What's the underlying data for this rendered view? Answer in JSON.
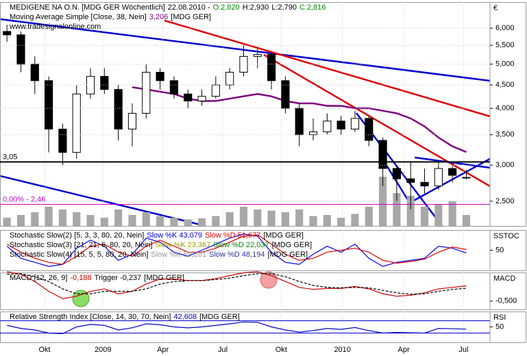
{
  "chart_data": [
    {
      "type": "candlestick",
      "title": "MEDIGENE NA O.N. [MDG GER  Wöchentlich]",
      "date": "22.08.2010 -",
      "ohlc": [
        {
          "text": "O:2,820",
          "color": "#008800"
        },
        {
          "text": "H:2,930",
          "color": "#000000"
        },
        {
          "text": "L:2,790",
          "color": "#000000"
        },
        {
          "text": "C:2,816",
          "color": "#008800"
        }
      ],
      "watermark": "www.tradesignalonline.com",
      "currency": "€",
      "log": true,
      "grid": true,
      "ylim": [
        2206,
        6846
      ],
      "yticks": [
        {
          "value": 2500,
          "label": "2,500"
        },
        {
          "value": 3000,
          "label": "3,000"
        },
        {
          "value": 3500,
          "label": "3,500"
        },
        {
          "value": 4000,
          "label": "4,000"
        },
        {
          "value": 4500,
          "label": "4,500"
        },
        {
          "value": 5000,
          "label": "5,000"
        },
        {
          "value": 5500,
          "label": "5,500"
        },
        {
          "value": 6000,
          "label": "6,000"
        }
      ],
      "xlim": [
        -0.5,
        34.7
      ],
      "xticks": [
        {
          "value": 2.7,
          "label": "Okt"
        },
        {
          "value": 6.9,
          "label": "2009"
        },
        {
          "value": 11.2,
          "label": "Apr"
        },
        {
          "value": 15.5,
          "label": "Jul"
        },
        {
          "value": 19.7,
          "label": "Okt"
        },
        {
          "value": 24.1,
          "label": "2010"
        },
        {
          "value": 28.5,
          "label": "Apr"
        },
        {
          "value": 32.8,
          "label": "Jul"
        }
      ],
      "up_color": "#ffffff",
      "down_color": "#000000",
      "open": [
        5900,
        5800,
        5000,
        4600,
        3600,
        3200,
        4300,
        4700,
        4400,
        3600,
        3900,
        4800,
        4600,
        4300,
        4150,
        4250,
        4500,
        4800,
        5200,
        5250,
        4600,
        4000,
        3500,
        3550,
        3750,
        3600,
        3800,
        3400,
        2950,
        2800,
        2750,
        2700,
        2950,
        2820
      ],
      "high": [
        6100,
        5900,
        5200,
        4700,
        3700,
        4500,
        4900,
        4900,
        4500,
        4100,
        5000,
        4900,
        4700,
        4400,
        4400,
        4700,
        4900,
        5500,
        5400,
        5300,
        4700,
        4100,
        3800,
        3900,
        3850,
        3950,
        3850,
        3450,
        3000,
        3050,
        2950,
        3050,
        3000,
        2930
      ],
      "low": [
        5600,
        4800,
        4300,
        3200,
        3000,
        3100,
        4200,
        4300,
        3400,
        3300,
        3800,
        4400,
        4200,
        4000,
        4050,
        4200,
        4400,
        4700,
        4900,
        4400,
        3900,
        3300,
        3400,
        3500,
        3500,
        3550,
        3300,
        2700,
        2500,
        2400,
        2600,
        2650,
        2750,
        2790
      ],
      "close": [
        5800,
        5000,
        4600,
        3600,
        3200,
        4300,
        4700,
        4400,
        3600,
        3900,
        4800,
        4600,
        4300,
        4150,
        4250,
        4500,
        4800,
        5200,
        5250,
        4600,
        4000,
        3500,
        3550,
        3750,
        3600,
        3800,
        3400,
        2950,
        2800,
        2750,
        2700,
        2950,
        2850,
        2816
      ],
      "volume": [
        15,
        20,
        25,
        35,
        30,
        25,
        20,
        15,
        30,
        20,
        25,
        18,
        15,
        12,
        14,
        18,
        25,
        35,
        30,
        28,
        25,
        30,
        18,
        20,
        15,
        22,
        35,
        90,
        60,
        55,
        35,
        40,
        45,
        20
      ],
      "volume_color": "#a8a8a8",
      "indicators": [
        {
          "name": "Moving Average Simple [Close, 38, Nein]",
          "value_label": "3,206",
          "suffix": "[MDG GER]",
          "color": "#800080",
          "values": [
            null,
            null,
            null,
            null,
            null,
            null,
            null,
            null,
            null,
            4450,
            4400,
            4350,
            4300,
            4200,
            4150,
            4150,
            4200,
            4250,
            4300,
            4250,
            4150,
            4100,
            4100,
            4050,
            4050,
            4000,
            4000,
            3950,
            3900,
            3800,
            3650,
            3450,
            3300,
            3206
          ]
        }
      ],
      "levels": [
        {
          "value": 3050,
          "label": "3,05",
          "color": "#000000"
        },
        {
          "value": 2460,
          "label": "0,00% - 2,46",
          "color": "#cc00cc"
        }
      ]
    },
    {
      "type": "line",
      "label": "SSTOC",
      "ylim": [
        0,
        100
      ],
      "yticks": [
        50
      ],
      "legend": [
        {
          "label": "Stochastic Slow(2) [5, 3, 3, 80, 20, Nein]",
          "suffix": "[MDG GER]",
          "series": [
            {
              "name": "Slow %K 43,079",
              "color": "#0000dd",
              "values": [
                60,
                30,
                20,
                10,
                15,
                55,
                75,
                60,
                25,
                40,
                80,
                70,
                45,
                35,
                50,
                65,
                80,
                90,
                85,
                45,
                20,
                15,
                40,
                60,
                45,
                65,
                30,
                10,
                20,
                25,
                30,
                60,
                55,
                43.079
              ]
            },
            {
              "name": "Slow %D 51,677",
              "color": "#dd0000",
              "values": [
                65,
                45,
                30,
                20,
                15,
                35,
                60,
                65,
                45,
                35,
                60,
                75,
                60,
                45,
                45,
                55,
                70,
                85,
                88,
                65,
                40,
                25,
                30,
                45,
                50,
                55,
                45,
                25,
                18,
                22,
                28,
                45,
                58,
                51.677
              ]
            }
          ]
        },
        {
          "label": "Stochastic Slow(3) [21, 21, 6, 80, 20, Nein]",
          "suffix": "[MDG GER]",
          "series": [
            {
              "name": "Slow %K 23,367",
              "color": "#999900"
            },
            {
              "name": "Slow %D 22,037",
              "color": "#008800"
            }
          ]
        },
        {
          "label": "Stochastic Slow(4) [15, 5, 5, 80, 20, Nein]",
          "suffix": "[MDG GER]",
          "series": [
            {
              "name": "Slow %K 59,281",
              "color": "#999999"
            },
            {
              "name": "Slow %D 48,194",
              "color": "#333399"
            }
          ]
        }
      ]
    },
    {
      "type": "line",
      "label": "MACD",
      "ylim": [
        -0.67,
        0.085
      ],
      "yticks": [
        {
          "value": -0.5,
          "label": "-0,500"
        }
      ],
      "legend": [
        {
          "label": "MACD [12, 26, 9]",
          "suffix": "[MDG GER]",
          "series": [
            {
              "name": "-0,188",
              "color": "#cc0000",
              "values": [
                0.1,
                0.05,
                -0.1,
                -0.3,
                -0.45,
                -0.4,
                -0.3,
                -0.25,
                -0.35,
                -0.3,
                -0.15,
                -0.05,
                -0.05,
                -0.08,
                -0.08,
                -0.04,
                0.02,
                0.08,
                0.1,
                0.02,
                -0.1,
                -0.22,
                -0.26,
                -0.24,
                -0.24,
                -0.2,
                -0.25,
                -0.35,
                -0.4,
                -0.38,
                -0.33,
                -0.25,
                -0.22,
                -0.188
              ]
            },
            {
              "name": "Trigger -0,237",
              "color": "#000000",
              "dashed": true,
              "values": [
                0.05,
                0.06,
                0.0,
                -0.1,
                -0.25,
                -0.35,
                -0.35,
                -0.3,
                -0.3,
                -0.3,
                -0.25,
                -0.15,
                -0.1,
                -0.08,
                -0.08,
                -0.06,
                -0.03,
                0.02,
                0.06,
                0.06,
                0.0,
                -0.1,
                -0.18,
                -0.22,
                -0.23,
                -0.22,
                -0.23,
                -0.28,
                -0.33,
                -0.36,
                -0.35,
                -0.3,
                -0.26,
                -0.237
              ]
            }
          ]
        }
      ]
    },
    {
      "type": "line",
      "label": "RSI",
      "ylim": [
        0,
        100
      ],
      "yticks": [
        50
      ],
      "levels": [
        30,
        70
      ],
      "legend": [
        {
          "label": "Relative Strength Index [Close, 14, 30, 70, Nein]",
          "suffix": "[MDG GER]",
          "series": [
            {
              "name": "42,608",
              "color": "#0000cc",
              "values": [
                55,
                45,
                40,
                30,
                28,
                50,
                58,
                55,
                40,
                47,
                60,
                57,
                50,
                47,
                50,
                55,
                60,
                66,
                65,
                50,
                40,
                33,
                38,
                45,
                42,
                48,
                38,
                30,
                32,
                31,
                30,
                45,
                44,
                42.608
              ]
            }
          ]
        }
      ]
    }
  ]
}
